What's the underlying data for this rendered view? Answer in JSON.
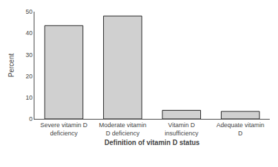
{
  "chart_data": {
    "type": "bar",
    "categories": [
      "Severe vitamin D\ndeficiency",
      "Moderate vitamin\nD deficiency",
      "Vitamin D\ninsufficiency",
      "Adequate vitamin\nD"
    ],
    "values": [
      43.5,
      48.0,
      4.0,
      3.5
    ],
    "color": "#d0d0d0",
    "xlabel": "Definition of vitamin D status",
    "ylabel": "Percent",
    "ylim": [
      0,
      50
    ],
    "yticks": [
      0,
      10,
      20,
      30,
      40,
      50
    ],
    "grid": false
  }
}
